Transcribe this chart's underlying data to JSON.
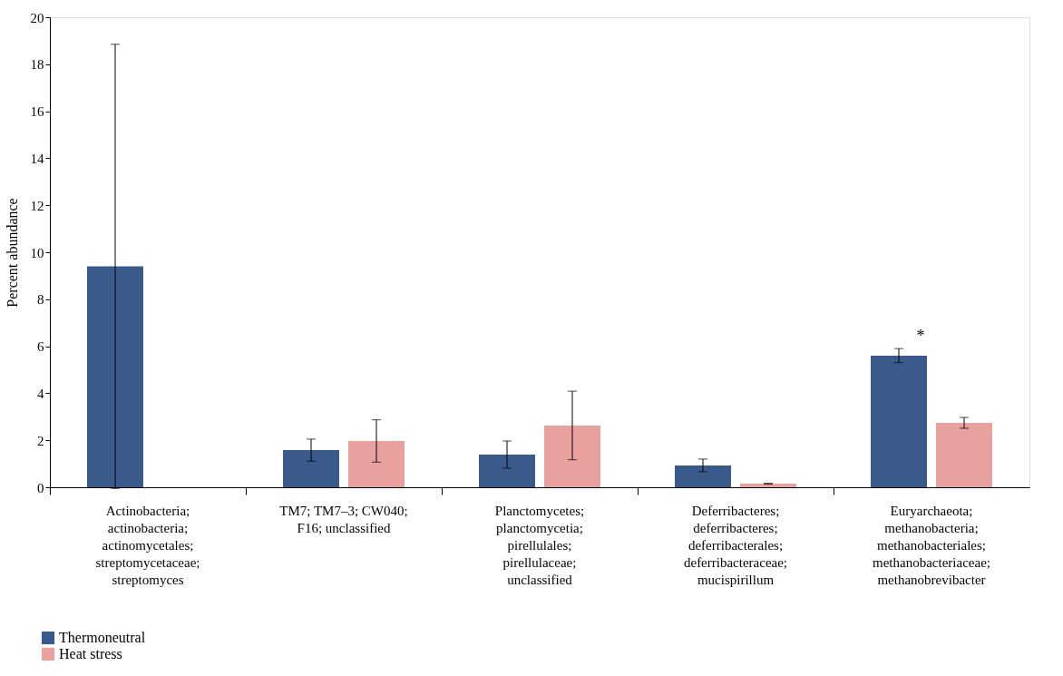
{
  "chart_data": {
    "type": "bar",
    "ylabel": "Percent abundance",
    "categories": [
      "Actinobacteria;\nactinobacteria;\nactinomycetales;\nstreptomycetaceae;\nstreptomyces",
      "TM7; TM7–3; CW040;\nF16; unclassified",
      "Planctomycetes;\nplanctomycetia;\npirellulales;\npirellulaceae;\nunclassified",
      "Deferribacteres;\ndeferribacteres;\ndeferribacterales;\ndeferribacteraceae;\nmucispirillum",
      "Euryarchaeota;\nmethanobacteria;\nmethanobacteriales;\nmethanobacteriaceae;\nmethanobrevibacter"
    ],
    "series": [
      {
        "name": "Thermoneutral",
        "color": "#3a5a8c",
        "values": [
          9.4,
          1.58,
          1.39,
          0.93,
          5.6
        ],
        "errors": [
          9.45,
          0.47,
          0.58,
          0.27,
          0.3
        ]
      },
      {
        "name": "Heat stress",
        "color": "#e9a19f",
        "values": [
          null,
          1.97,
          2.63,
          0.15,
          2.74
        ],
        "errors": [
          null,
          0.9,
          1.46,
          0.02,
          0.23
        ]
      }
    ],
    "ylim": [
      0,
      20
    ],
    "yticks": [
      0,
      2,
      4,
      6,
      8,
      10,
      12,
      14,
      16,
      18,
      20
    ],
    "annotations": [
      "*"
    ],
    "legend": "bottom left",
    "grid": false
  }
}
